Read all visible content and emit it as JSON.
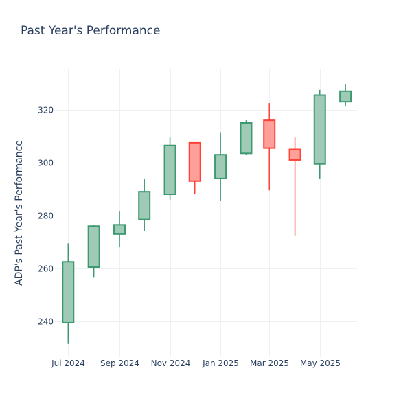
{
  "chart_data": {
    "type": "candlestick",
    "title": "Past Year's Performance",
    "xlabel": "",
    "ylabel": "ADP's Past Year's Performance",
    "ylim": [
      226.5,
      335.5
    ],
    "yticks": [
      240,
      260,
      280,
      300,
      320
    ],
    "xticks": [
      {
        "label": "Jul 2024",
        "date": "2024-07-01"
      },
      {
        "label": "Sep 2024",
        "date": "2024-09-01"
      },
      {
        "label": "Nov 2024",
        "date": "2024-11-01"
      },
      {
        "label": "Jan 2025",
        "date": "2025-01-01"
      },
      {
        "label": "Mar 2025",
        "date": "2025-03-01"
      },
      {
        "label": "May 2025",
        "date": "2025-05-01"
      }
    ],
    "grid": true,
    "colors": {
      "up_line": "#3d9970",
      "up_fill": "#9ecab6",
      "down_line": "#ff4136",
      "down_fill": "#ff9f9a"
    },
    "candles": [
      {
        "date": "2024-07-01",
        "open": 239.5,
        "high": 269.5,
        "low": 231.5,
        "close": 262.5
      },
      {
        "date": "2024-08-01",
        "open": 260.5,
        "high": 276.5,
        "low": 256.5,
        "close": 276.0
      },
      {
        "date": "2024-09-01",
        "open": 273.0,
        "high": 281.5,
        "low": 268.0,
        "close": 276.5
      },
      {
        "date": "2024-10-01",
        "open": 278.5,
        "high": 294.0,
        "low": 274.0,
        "close": 289.0
      },
      {
        "date": "2024-11-01",
        "open": 288.0,
        "high": 309.5,
        "low": 286.0,
        "close": 306.5
      },
      {
        "date": "2024-12-01",
        "open": 307.5,
        "high": 307.5,
        "low": 288.0,
        "close": 293.0
      },
      {
        "date": "2025-01-01",
        "open": 294.0,
        "high": 311.5,
        "low": 285.5,
        "close": 303.0
      },
      {
        "date": "2025-02-01",
        "open": 303.5,
        "high": 316.0,
        "low": 303.0,
        "close": 315.0
      },
      {
        "date": "2025-03-01",
        "open": 316.0,
        "high": 322.5,
        "low": 289.5,
        "close": 305.5
      },
      {
        "date": "2025-04-01",
        "open": 305.0,
        "high": 309.5,
        "low": 272.5,
        "close": 301.0
      },
      {
        "date": "2025-05-01",
        "open": 299.5,
        "high": 327.5,
        "low": 294.0,
        "close": 325.5
      },
      {
        "date": "2025-06-01",
        "open": 323.0,
        "high": 329.5,
        "low": 321.5,
        "close": 327.0
      }
    ]
  }
}
